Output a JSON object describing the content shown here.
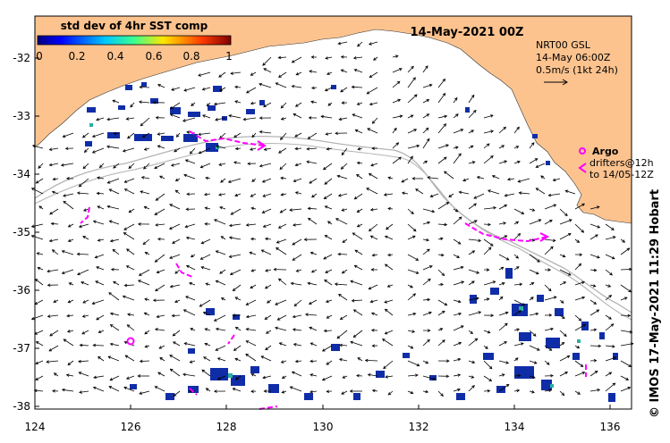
{
  "title": "14-May-2021 00Z",
  "colorbar": {
    "label": "std dev of 4hr SST comp",
    "ticks": [
      "0",
      "0.2",
      "0.4",
      "0.6",
      "0.8",
      "1"
    ]
  },
  "info": {
    "model": "NRT00 GSL",
    "time": "14-May 06:00Z",
    "scale": "0.5m/s (1kt 24h)"
  },
  "legend": {
    "argo": "Argo",
    "drifters_line1": "drifters@12h",
    "drifters_line2": "to 14/05-12Z"
  },
  "credit": "© IMOS 17-May-2021 11:29 Hobart",
  "axes": {
    "x_ticks": [
      "124",
      "126",
      "128",
      "130",
      "132",
      "134",
      "136"
    ],
    "y_ticks": [
      "-32",
      "-33",
      "-34",
      "-35",
      "-36",
      "-37",
      "-38"
    ]
  },
  "colors": {
    "land": "#fcc38f",
    "argo": "#ff00ff",
    "drifter": "#ff00ff",
    "sst_patch": "#102da8",
    "bathymetry": "#b4b4b4"
  }
}
